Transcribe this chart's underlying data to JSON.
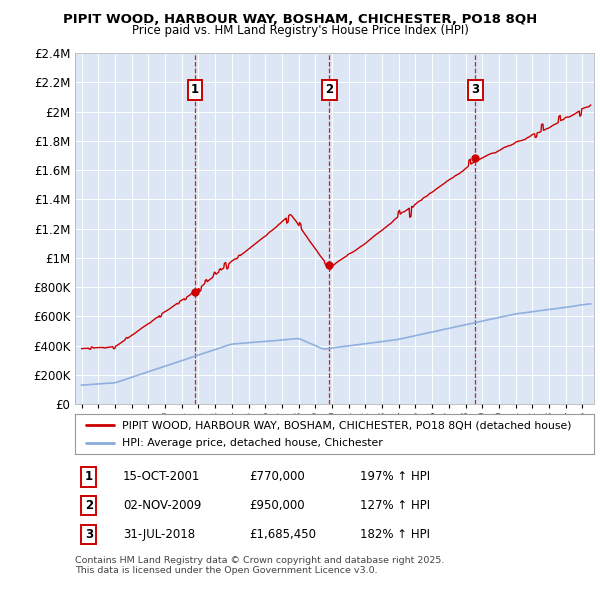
{
  "title": "PIPIT WOOD, HARBOUR WAY, BOSHAM, CHICHESTER, PO18 8QH",
  "subtitle": "Price paid vs. HM Land Registry's House Price Index (HPI)",
  "legend_entry1": "PIPIT WOOD, HARBOUR WAY, BOSHAM, CHICHESTER, PO18 8QH (detached house)",
  "legend_entry2": "HPI: Average price, detached house, Chichester",
  "sale1_date": "15-OCT-2001",
  "sale1_price": 770000,
  "sale1_hpi": "197% ↑ HPI",
  "sale2_date": "02-NOV-2009",
  "sale2_price": 950000,
  "sale2_hpi": "127% ↑ HPI",
  "sale3_date": "31-JUL-2018",
  "sale3_price": 1685450,
  "sale3_hpi": "182% ↑ HPI",
  "footer": "Contains HM Land Registry data © Crown copyright and database right 2025.\nThis data is licensed under the Open Government Licence v3.0.",
  "line_color_property": "#cc0000",
  "line_color_hpi": "#88aadd",
  "vline_color": "#cc0000",
  "plot_bg_color": "#dce6f5",
  "ylim": [
    0,
    2400000
  ],
  "yticks": [
    0,
    200000,
    400000,
    600000,
    800000,
    1000000,
    1200000,
    1400000,
    1600000,
    1800000,
    2000000,
    2200000,
    2400000
  ],
  "sale_dates_decimal": [
    2001.79,
    2009.84,
    2018.58
  ],
  "sale_prices": [
    770000,
    950000,
    1685450
  ]
}
